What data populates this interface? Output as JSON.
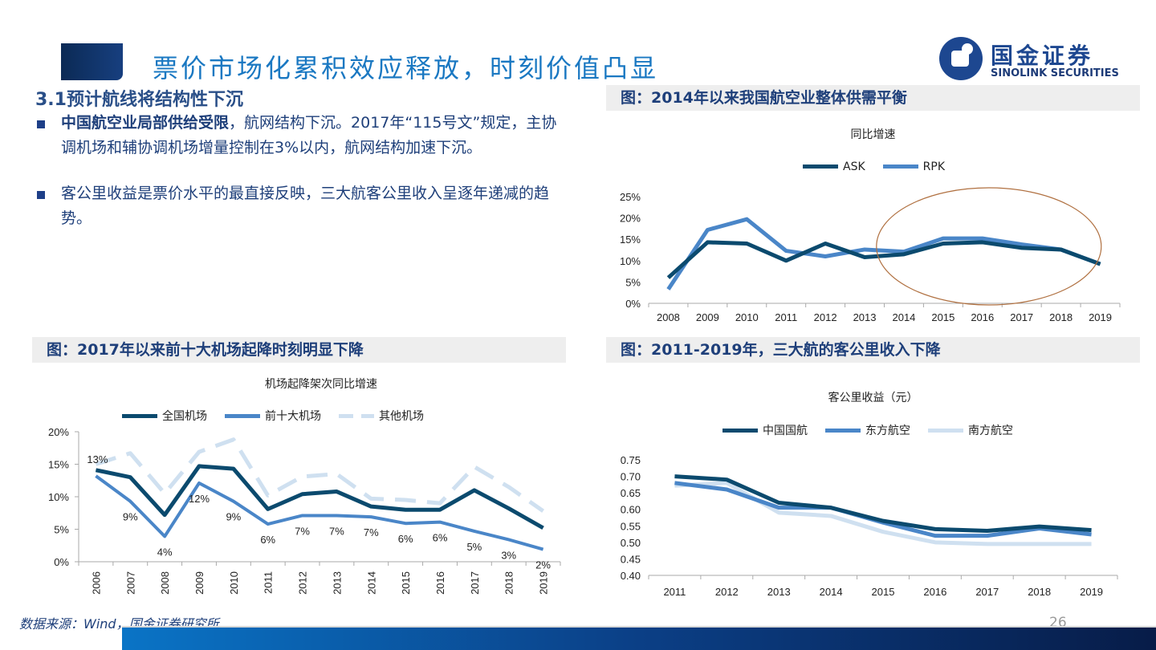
{
  "header": {
    "title": "票价市场化累积效应释放，时刻价值凸显",
    "logo_cn": "国金证券",
    "logo_en": "SINOLINK SECURITIES"
  },
  "section": {
    "title": "3.1预计航线将结构性下沉",
    "bullets": [
      {
        "bold": "中国航空业局部供给受限",
        "text": "，航网结构下沉。2017年“115号文”规定，主协调机场和辅协调机场增量控制在3%以内，航网结构加速下沉。"
      },
      {
        "bold": "",
        "text": "客公里收益是票价水平的最直接反映，三大航客公里收入呈逐年递减的趋势。"
      }
    ]
  },
  "footer": {
    "source": "数据来源：Wind，国金证券研究所",
    "page": "26"
  },
  "colors": {
    "dark": "#0b4a6e",
    "mid": "#4a86c8",
    "light": "#cfe0f0",
    "ellipse": "#b07040",
    "header_bg": "#eeeeee"
  },
  "chart_data": [
    {
      "type": "line",
      "panel_title": "图：2014年以来我国航空业整体供需平衡",
      "title": "同比增速",
      "categories": [
        "2008",
        "2009",
        "2010",
        "2011",
        "2012",
        "2013",
        "2014",
        "2015",
        "2016",
        "2017",
        "2018",
        "2019"
      ],
      "series": [
        {
          "name": "ASK",
          "color": "#0b4a6e",
          "values": [
            6.0,
            14.3,
            14.0,
            10.0,
            14.0,
            10.8,
            11.5,
            14.0,
            14.3,
            13.0,
            12.6,
            9.2
          ]
        },
        {
          "name": "RPK",
          "color": "#4a86c8",
          "values": [
            3.3,
            17.2,
            19.7,
            12.3,
            11.0,
            12.6,
            12.1,
            15.2,
            15.2,
            13.8,
            12.6,
            9.2
          ]
        }
      ],
      "yticks": [
        "0%",
        "5%",
        "10%",
        "15%",
        "20%",
        "25%"
      ],
      "ylim": [
        0,
        25
      ],
      "legend": "top",
      "annotation": "ellipse highlighting 2015-2019",
      "grid": false
    },
    {
      "type": "line",
      "panel_title": "图：2017年以来前十大机场起降时刻明显下降",
      "title": "机场起降架次同比增速",
      "categories": [
        "2006",
        "2007",
        "2008",
        "2009",
        "2010",
        "2011",
        "2012",
        "2013",
        "2014",
        "2015",
        "2016",
        "2017",
        "2018",
        "2019"
      ],
      "series": [
        {
          "name": "全国机场",
          "color": "#0b4a6e",
          "style": "solid",
          "values": [
            14.1,
            13.0,
            7.2,
            14.7,
            14.3,
            8.1,
            10.4,
            10.8,
            8.5,
            8.0,
            8.0,
            11.0,
            8.2,
            5.2
          ]
        },
        {
          "name": "前十大机场",
          "color": "#4a86c8",
          "style": "solid",
          "values": [
            13.2,
            9.3,
            3.9,
            12.1,
            9.3,
            5.8,
            7.1,
            7.1,
            6.9,
            5.9,
            6.1,
            4.7,
            3.4,
            1.9
          ]
        },
        {
          "name": "其他机场",
          "color": "#cfe0f0",
          "style": "dashed",
          "values": [
            15.0,
            16.7,
            10.5,
            16.9,
            18.8,
            10.2,
            13.1,
            13.5,
            9.7,
            9.5,
            9.0,
            14.6,
            11.5,
            7.8
          ]
        }
      ],
      "data_labels": [
        "13%",
        "9%",
        "4%",
        "12%",
        "9%",
        "6%",
        "7%",
        "7%",
        "7%",
        "6%",
        "6%",
        "5%",
        "3%",
        "2%"
      ],
      "yticks": [
        "0%",
        "5%",
        "10%",
        "15%",
        "20%"
      ],
      "ylim": [
        0,
        20
      ],
      "legend": "top",
      "grid": false
    },
    {
      "type": "line",
      "panel_title": "图：2011-2019年，三大航的客公里收入下降",
      "title": "客公里收益（元）",
      "categories": [
        "2011",
        "2012",
        "2013",
        "2014",
        "2015",
        "2016",
        "2017",
        "2018",
        "2019"
      ],
      "series": [
        {
          "name": "中国国航",
          "color": "#0b4a6e",
          "values": [
            0.7,
            0.69,
            0.62,
            0.605,
            0.565,
            0.54,
            0.535,
            0.548,
            0.537
          ]
        },
        {
          "name": "东方航空",
          "color": "#4a86c8",
          "values": [
            0.68,
            0.66,
            0.605,
            0.605,
            0.56,
            0.52,
            0.52,
            0.542,
            0.524
          ]
        },
        {
          "name": "南方航空",
          "color": "#cfe0f0",
          "values": [
            0.672,
            0.68,
            0.59,
            0.58,
            0.532,
            0.5,
            0.495,
            0.495,
            0.495
          ]
        }
      ],
      "yticks": [
        "0.40",
        "0.45",
        "0.50",
        "0.55",
        "0.60",
        "0.65",
        "0.70",
        "0.75"
      ],
      "ylim": [
        0.4,
        0.75
      ],
      "legend": "top",
      "grid": false
    }
  ]
}
